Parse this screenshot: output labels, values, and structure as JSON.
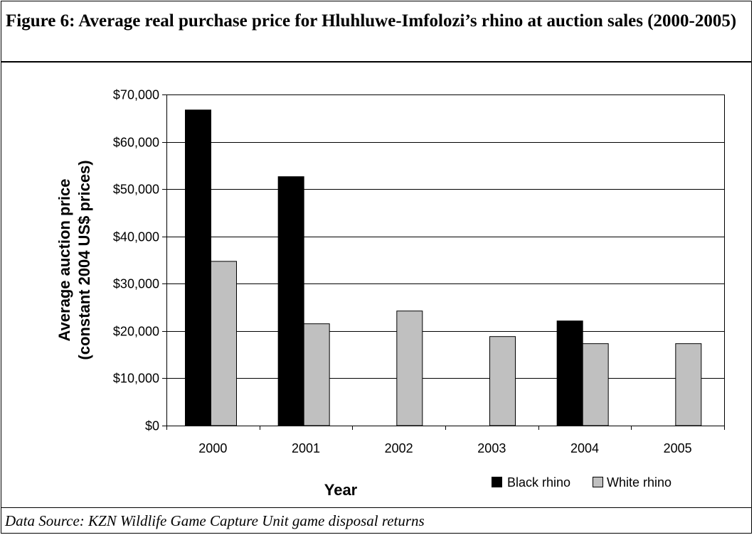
{
  "figure_title": "Figure 6: Average real purchase price for Hluhluwe-Imfolozi’s rhino at auction sales (2000-2005)",
  "source": "Data Source: KZN Wildlife Game Capture Unit game disposal returns",
  "colors": {
    "black_rhino": "#000000",
    "white_rhino": "#c0c0c0",
    "grid": "#000000"
  },
  "chart_data": {
    "type": "bar",
    "categories": [
      "2000",
      "2001",
      "2002",
      "2003",
      "2004",
      "2005"
    ],
    "series": [
      {
        "name": "Black rhino",
        "values": [
          66800,
          52700,
          null,
          null,
          22200,
          null
        ]
      },
      {
        "name": "White rhino",
        "values": [
          34800,
          21600,
          24300,
          18900,
          17400,
          17400
        ]
      }
    ],
    "xlabel": "Year",
    "ylabel_line1": "Average auction price",
    "ylabel_line2": "(constant 2004 US$ prices)",
    "ylim": [
      0,
      70000
    ],
    "yticks": [
      "$0",
      "$10,000",
      "$20,000",
      "$30,000",
      "$40,000",
      "$50,000",
      "$60,000",
      "$70,000"
    ],
    "grid": true,
    "legend_position": "bottom-right"
  }
}
